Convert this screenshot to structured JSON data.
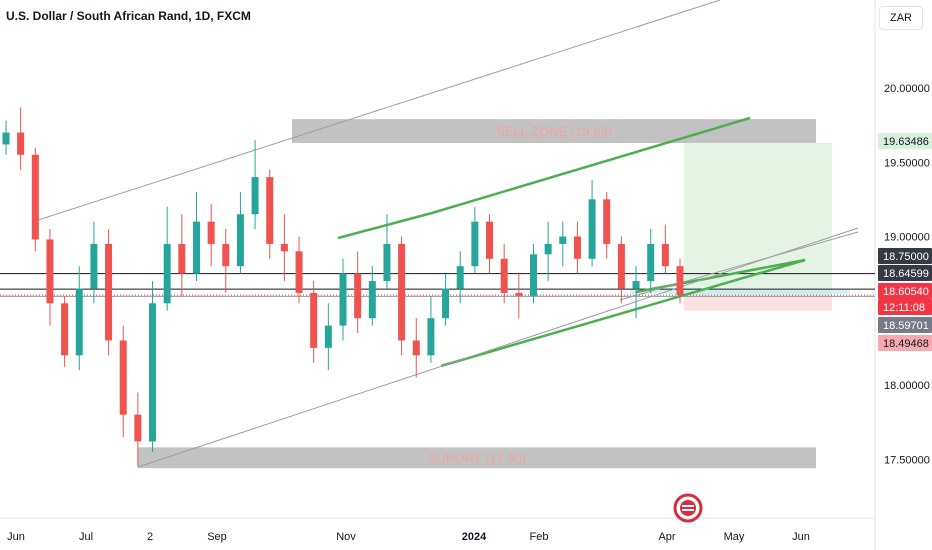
{
  "header": {
    "title": "U.S. Dollar / South African Rand, 1D, FXCM",
    "currency_label": "ZAR"
  },
  "chart_data": {
    "type": "candlestick",
    "title": "U.S. Dollar / South African Rand, 1D, FXCM",
    "ylim": [
      17.15,
      20.5
    ],
    "y_ticks": [
      "20.00000",
      "19.50000",
      "19.00000",
      "18.00000",
      "17.50000"
    ],
    "x_ticks": [
      "Jun",
      "Jul",
      "2",
      "Sep",
      "Nov",
      "2024",
      "Feb",
      "Apr",
      "May",
      "Jun"
    ],
    "x_tick_bold": "2024",
    "zones": [
      {
        "label": "SELL ZONE (19.63)",
        "low": 19.63,
        "high": 19.79,
        "color": "#b7b7b7"
      },
      {
        "label": "SUPORT (17.50)",
        "low": 17.44,
        "high": 17.58,
        "color": "#b7b7b7"
      }
    ],
    "horizontal_lines": [
      {
        "value": 18.75,
        "color": "#131722"
      },
      {
        "value": 18.64599,
        "color": "#131722"
      },
      {
        "value": 18.59701,
        "color": "#9598a1"
      },
      {
        "value": 18.6054,
        "color": "#f23645"
      }
    ],
    "price_labels": [
      {
        "value": "19.63486",
        "bg": "#d7f0dc",
        "fg": "#131722"
      },
      {
        "value": "18.75000",
        "bg": "#363a45",
        "fg": "#ffffff"
      },
      {
        "value": "18.64599",
        "bg": "#363a45",
        "fg": "#ffffff"
      },
      {
        "value": "18.60540",
        "bg": "#f23645",
        "fg": "#ffffff"
      },
      {
        "value": "12:11:08",
        "bg": "#f23645",
        "fg": "#ffffff"
      },
      {
        "value": "18.59701",
        "bg": "#787b86",
        "fg": "#ffffff"
      },
      {
        "value": "18.49468",
        "bg": "#f7a9b0",
        "fg": "#131722"
      }
    ],
    "position": {
      "entry": 18.6,
      "target": 19.63,
      "stop": 18.5,
      "profit_color": "#e5f3e5",
      "loss_color": "#fbe1e3"
    },
    "trendlines": [
      {
        "color": "#4caf50",
        "width": 2.5
      },
      {
        "color": "#4caf50",
        "width": 2.5
      },
      {
        "color": "#4caf50",
        "width": 2.5
      },
      {
        "color": "#9e9e9e",
        "width": 1
      },
      {
        "color": "#9e9e9e",
        "width": 1
      }
    ],
    "series": [
      {
        "date": "May 29",
        "open": 19.62,
        "high": 19.78,
        "low": 19.55,
        "close": 19.7
      },
      {
        "date": "Jun 5",
        "open": 19.7,
        "high": 19.87,
        "low": 19.45,
        "close": 19.55
      },
      {
        "date": "Jun 12",
        "open": 19.55,
        "high": 19.6,
        "low": 18.9,
        "close": 18.98
      },
      {
        "date": "Jun 19",
        "open": 18.98,
        "high": 19.05,
        "low": 18.4,
        "close": 18.55
      },
      {
        "date": "Jun 26",
        "open": 18.55,
        "high": 18.6,
        "low": 18.12,
        "close": 18.2
      },
      {
        "date": "Jul 3",
        "open": 18.2,
        "high": 18.8,
        "low": 18.1,
        "close": 18.65
      },
      {
        "date": "Jul 10",
        "open": 18.65,
        "high": 19.1,
        "low": 18.55,
        "close": 18.95
      },
      {
        "date": "Jul 17",
        "open": 18.95,
        "high": 19.05,
        "low": 18.2,
        "close": 18.3
      },
      {
        "date": "Jul 24",
        "open": 18.3,
        "high": 18.4,
        "low": 17.65,
        "close": 17.8
      },
      {
        "date": "Jul 31",
        "open": 17.8,
        "high": 17.95,
        "low": 17.45,
        "close": 17.62
      },
      {
        "date": "Aug 7",
        "open": 17.62,
        "high": 18.7,
        "low": 17.55,
        "close": 18.55
      },
      {
        "date": "Aug 14",
        "open": 18.55,
        "high": 19.2,
        "low": 18.5,
        "close": 18.95
      },
      {
        "date": "Aug 21",
        "open": 18.95,
        "high": 19.15,
        "low": 18.6,
        "close": 18.75
      },
      {
        "date": "Aug 28",
        "open": 18.75,
        "high": 19.3,
        "low": 18.7,
        "close": 19.1
      },
      {
        "date": "Sep 4",
        "open": 19.1,
        "high": 19.22,
        "low": 18.8,
        "close": 18.95
      },
      {
        "date": "Sep 11",
        "open": 18.95,
        "high": 19.05,
        "low": 18.62,
        "close": 18.8
      },
      {
        "date": "Sep 18",
        "open": 18.8,
        "high": 19.3,
        "low": 18.75,
        "close": 19.15
      },
      {
        "date": "Sep 25",
        "open": 19.15,
        "high": 19.65,
        "low": 19.05,
        "close": 19.4
      },
      {
        "date": "Oct 2",
        "open": 19.4,
        "high": 19.45,
        "low": 18.85,
        "close": 18.95
      },
      {
        "date": "Oct 9",
        "open": 18.95,
        "high": 19.15,
        "low": 18.7,
        "close": 18.9
      },
      {
        "date": "Oct 16",
        "open": 18.9,
        "high": 19.0,
        "low": 18.55,
        "close": 18.62
      },
      {
        "date": "Oct 23",
        "open": 18.62,
        "high": 18.7,
        "low": 18.15,
        "close": 18.25
      },
      {
        "date": "Oct 30",
        "open": 18.25,
        "high": 18.55,
        "low": 18.1,
        "close": 18.4
      },
      {
        "date": "Nov 6",
        "open": 18.4,
        "high": 18.85,
        "low": 18.3,
        "close": 18.75
      },
      {
        "date": "Nov 13",
        "open": 18.75,
        "high": 18.9,
        "low": 18.35,
        "close": 18.45
      },
      {
        "date": "Nov 20",
        "open": 18.45,
        "high": 18.8,
        "low": 18.4,
        "close": 18.7
      },
      {
        "date": "Nov 27",
        "open": 18.7,
        "high": 19.15,
        "low": 18.65,
        "close": 18.95
      },
      {
        "date": "Dec 4",
        "open": 18.95,
        "high": 19.0,
        "low": 18.2,
        "close": 18.3
      },
      {
        "date": "Dec 11",
        "open": 18.3,
        "high": 18.45,
        "low": 18.05,
        "close": 18.2
      },
      {
        "date": "Dec 18",
        "open": 18.2,
        "high": 18.6,
        "low": 18.15,
        "close": 18.45
      },
      {
        "date": "Dec 25",
        "open": 18.45,
        "high": 18.75,
        "low": 18.4,
        "close": 18.65
      },
      {
        "date": "Jan 1",
        "open": 18.65,
        "high": 18.9,
        "low": 18.55,
        "close": 18.8
      },
      {
        "date": "Jan 8",
        "open": 18.8,
        "high": 19.2,
        "low": 18.75,
        "close": 19.1
      },
      {
        "date": "Jan 15",
        "open": 19.1,
        "high": 19.15,
        "low": 18.75,
        "close": 18.85
      },
      {
        "date": "Jan 22",
        "open": 18.85,
        "high": 18.95,
        "low": 18.55,
        "close": 18.62
      },
      {
        "date": "Jan 29",
        "open": 18.62,
        "high": 18.75,
        "low": 18.45,
        "close": 18.6
      },
      {
        "date": "Feb 5",
        "open": 18.6,
        "high": 18.95,
        "low": 18.55,
        "close": 18.88
      },
      {
        "date": "Feb 12",
        "open": 18.88,
        "high": 19.1,
        "low": 18.7,
        "close": 18.95
      },
      {
        "date": "Feb 19",
        "open": 18.95,
        "high": 19.1,
        "low": 18.8,
        "close": 19.0
      },
      {
        "date": "Feb 26",
        "open": 19.0,
        "high": 19.1,
        "low": 18.75,
        "close": 18.85
      },
      {
        "date": "Mar 4",
        "open": 18.85,
        "high": 19.38,
        "low": 18.8,
        "close": 19.25
      },
      {
        "date": "Mar 11",
        "open": 19.25,
        "high": 19.3,
        "low": 18.85,
        "close": 18.95
      },
      {
        "date": "Mar 18",
        "open": 18.95,
        "high": 19.0,
        "low": 18.55,
        "close": 18.65
      },
      {
        "date": "Mar 25",
        "open": 18.65,
        "high": 18.8,
        "low": 18.45,
        "close": 18.7
      },
      {
        "date": "Apr 1",
        "open": 18.7,
        "high": 19.05,
        "low": 18.62,
        "close": 18.95
      },
      {
        "date": "Apr 8",
        "open": 18.95,
        "high": 19.08,
        "low": 18.75,
        "close": 18.8
      },
      {
        "date": "Apr 15",
        "open": 18.8,
        "high": 18.85,
        "low": 18.55,
        "close": 18.605
      }
    ]
  }
}
